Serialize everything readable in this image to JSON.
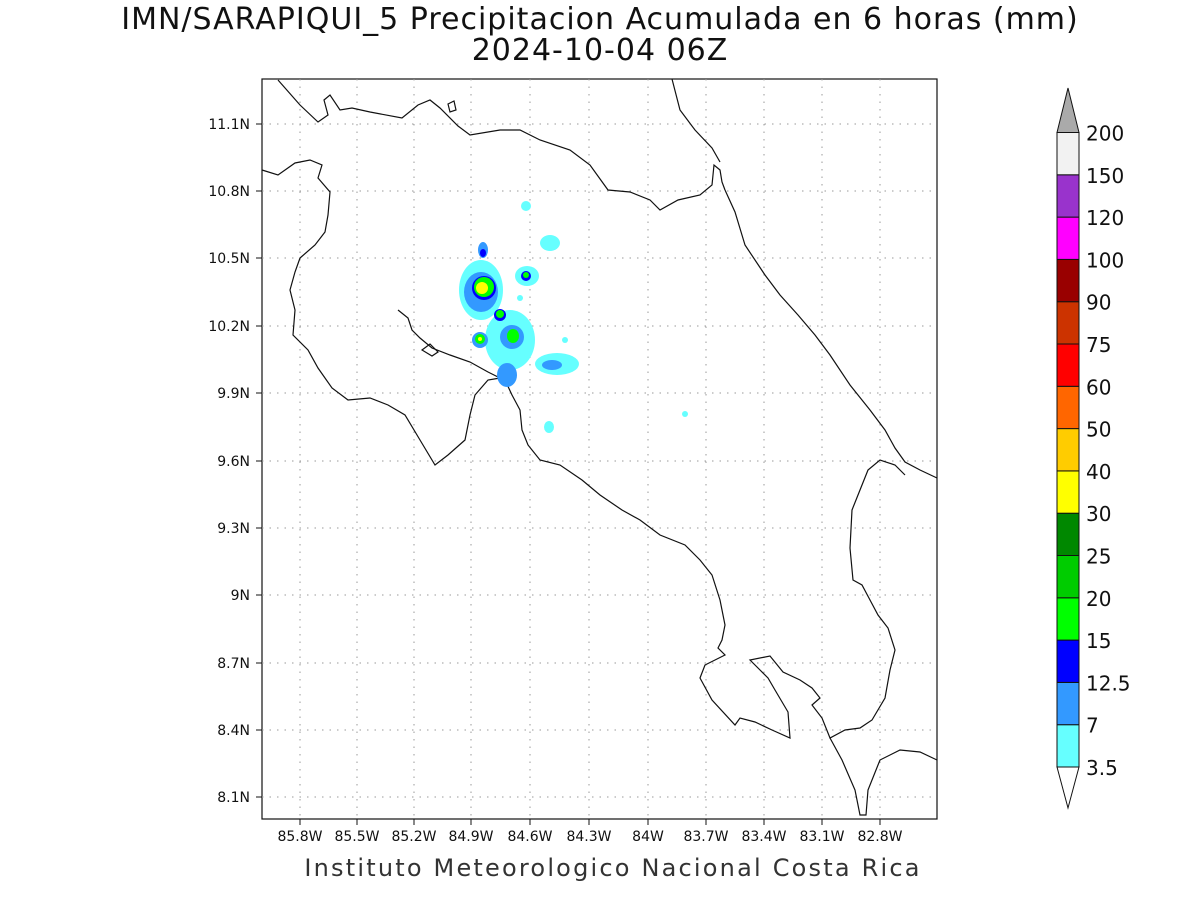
{
  "title": {
    "line1": "IMN/SARAPIQUI_5 Precipitacion Acumulada en 6 horas (mm)",
    "line2": "2024-10-04 06Z"
  },
  "credit": "Instituto Meteorologico Nacional Costa Rica",
  "map": {
    "lon_range": [
      -86.02,
      -82.5
    ],
    "lat_range": [
      8.0,
      11.3
    ],
    "x_ticks": [
      "85.8W",
      "85.5W",
      "85.2W",
      "84.9W",
      "84.6W",
      "84.3W",
      "84W",
      "83.7W",
      "83.4W",
      "83.1W",
      "82.8W"
    ],
    "y_ticks": [
      "11.1N",
      "10.8N",
      "10.5N",
      "10.2N",
      "9.9N",
      "9.6N",
      "9.3N",
      "9N",
      "8.7N",
      "8.4N",
      "8.1N"
    ],
    "grid": "dotted"
  },
  "colorbar": {
    "labels": [
      "3.5",
      "7",
      "12.5",
      "15",
      "20",
      "25",
      "30",
      "40",
      "50",
      "60",
      "75",
      "90",
      "100",
      "120",
      "150",
      "200"
    ],
    "colors": [
      "#66ffff",
      "#3399ff",
      "#0000ff",
      "#00ff00",
      "#00cc00",
      "#008800",
      "#ffff00",
      "#ffcc00",
      "#ff6600",
      "#ff0000",
      "#cc3300",
      "#990000",
      "#ff00ff",
      "#9933cc",
      "#f2f2f2",
      "#aaaaaa"
    ]
  }
}
